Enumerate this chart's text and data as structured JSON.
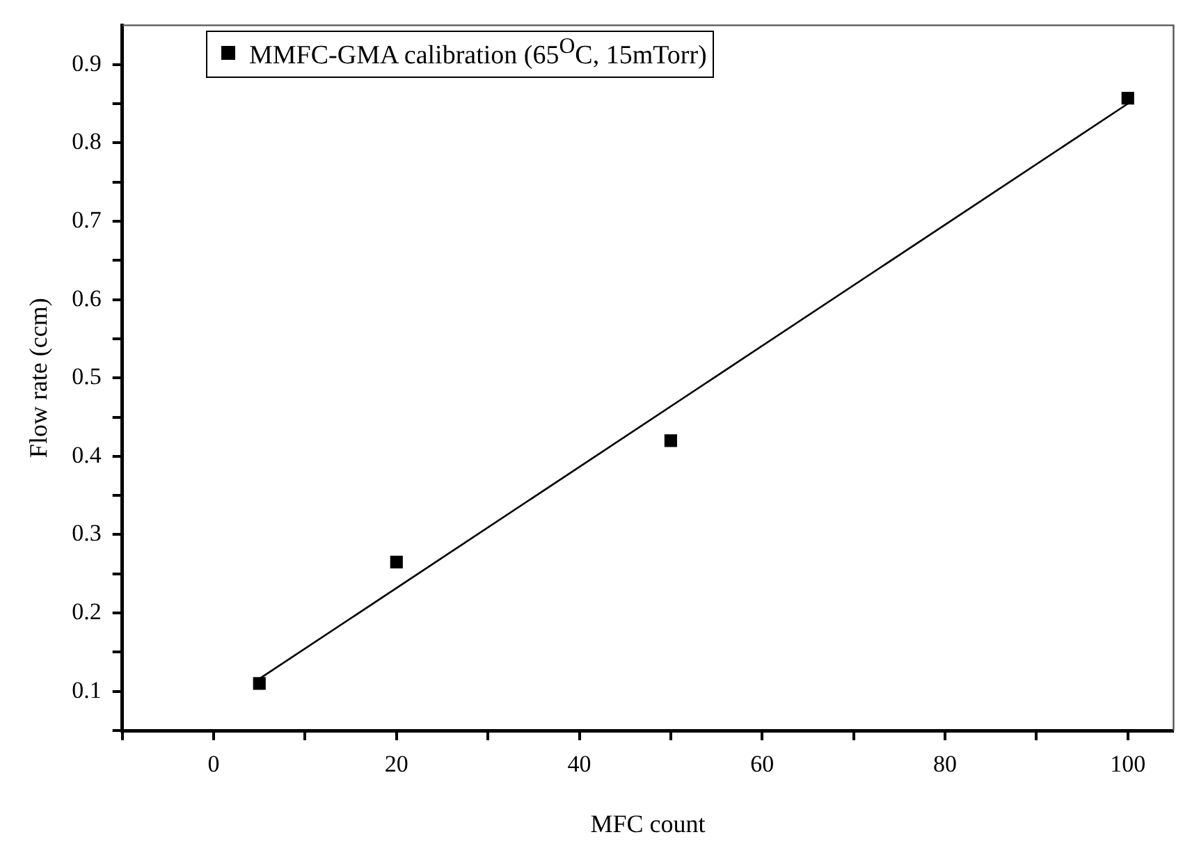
{
  "chart_data": {
    "type": "scatter",
    "xlabel": "MFC count",
    "ylabel": "Flow rate (ccm)",
    "xlim": [
      -10,
      105
    ],
    "xticks": [
      {
        "value": -10,
        "label": null
      },
      0,
      {
        "value": 10,
        "label": null
      },
      20,
      {
        "value": 30,
        "label": null
      },
      40,
      {
        "value": 50,
        "label": null
      },
      60,
      {
        "value": 70,
        "label": null
      },
      80,
      {
        "value": 90,
        "label": null
      },
      100
    ],
    "ylim": [
      0.05,
      0.95
    ],
    "yticks": [
      {
        "value": 0.05,
        "label": null
      },
      0.1,
      {
        "value": 0.15,
        "label": null
      },
      0.2,
      {
        "value": 0.25,
        "label": null
      },
      0.3,
      {
        "value": 0.35,
        "label": null
      },
      0.4,
      {
        "value": 0.45,
        "label": null
      },
      0.5,
      {
        "value": 0.55,
        "label": null
      },
      0.6,
      {
        "value": 0.65,
        "label": null
      },
      0.7,
      {
        "value": 0.75,
        "label": null
      },
      0.8,
      {
        "value": 0.85,
        "label": null
      },
      0.9
    ],
    "grid": false,
    "legend": "top left",
    "marker": "square",
    "series": [
      {
        "name": "MMFC-GMA calibration (65$^{O}$C, 15mTorr)",
        "color": "#000000",
        "x": [
          5,
          20,
          50,
          100
        ],
        "values": [
          0.11,
          0.265,
          0.42,
          0.857
        ]
      },
      {
        "type": "line",
        "color": "#000000",
        "x": [
          5,
          100
        ],
        "values": [
          0.116,
          0.85
        ],
        "marker": "none",
        "line_style": "solid"
      }
    ]
  }
}
